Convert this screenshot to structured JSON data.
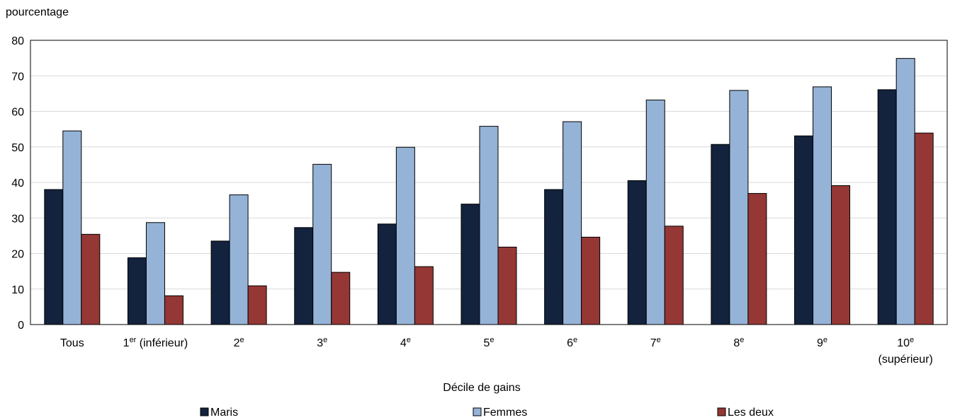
{
  "chart_data": {
    "type": "bar",
    "ylabel": "pourcentage",
    "xlabel": "Décile de gains",
    "ylim": [
      0,
      80
    ],
    "yticks": [
      0,
      10,
      20,
      30,
      40,
      50,
      60,
      70,
      80
    ],
    "grid": true,
    "legend_position": "bottom",
    "categories": [
      {
        "label": "Tous",
        "sup": "",
        "rest": "",
        "line2": ""
      },
      {
        "label": "1",
        "sup": "er",
        "rest": " (inférieur)",
        "line2": ""
      },
      {
        "label": "2",
        "sup": "e",
        "rest": "",
        "line2": ""
      },
      {
        "label": "3",
        "sup": "e",
        "rest": "",
        "line2": ""
      },
      {
        "label": "4",
        "sup": "e",
        "rest": "",
        "line2": ""
      },
      {
        "label": "5",
        "sup": "e",
        "rest": "",
        "line2": ""
      },
      {
        "label": "6",
        "sup": "e",
        "rest": "",
        "line2": ""
      },
      {
        "label": "7",
        "sup": "e",
        "rest": "",
        "line2": ""
      },
      {
        "label": "8",
        "sup": "e",
        "rest": "",
        "line2": ""
      },
      {
        "label": "9",
        "sup": "e",
        "rest": "",
        "line2": ""
      },
      {
        "label": "10",
        "sup": "e",
        "rest": "",
        "line2": "(supérieur)"
      }
    ],
    "series": [
      {
        "name": "Maris",
        "color": "#13223d",
        "values": [
          38.0,
          18.8,
          23.5,
          27.3,
          28.3,
          33.9,
          38.0,
          40.5,
          50.7,
          53.1,
          66.1
        ]
      },
      {
        "name": "Femmes",
        "color": "#95b3d7",
        "values": [
          54.5,
          28.7,
          36.5,
          45.1,
          49.9,
          55.8,
          57.1,
          63.2,
          65.9,
          66.9,
          74.9
        ]
      },
      {
        "name": "Les deux",
        "color": "#953735",
        "values": [
          25.4,
          8.1,
          10.9,
          14.7,
          16.3,
          21.8,
          24.6,
          27.7,
          36.9,
          39.1,
          53.9
        ]
      }
    ]
  }
}
